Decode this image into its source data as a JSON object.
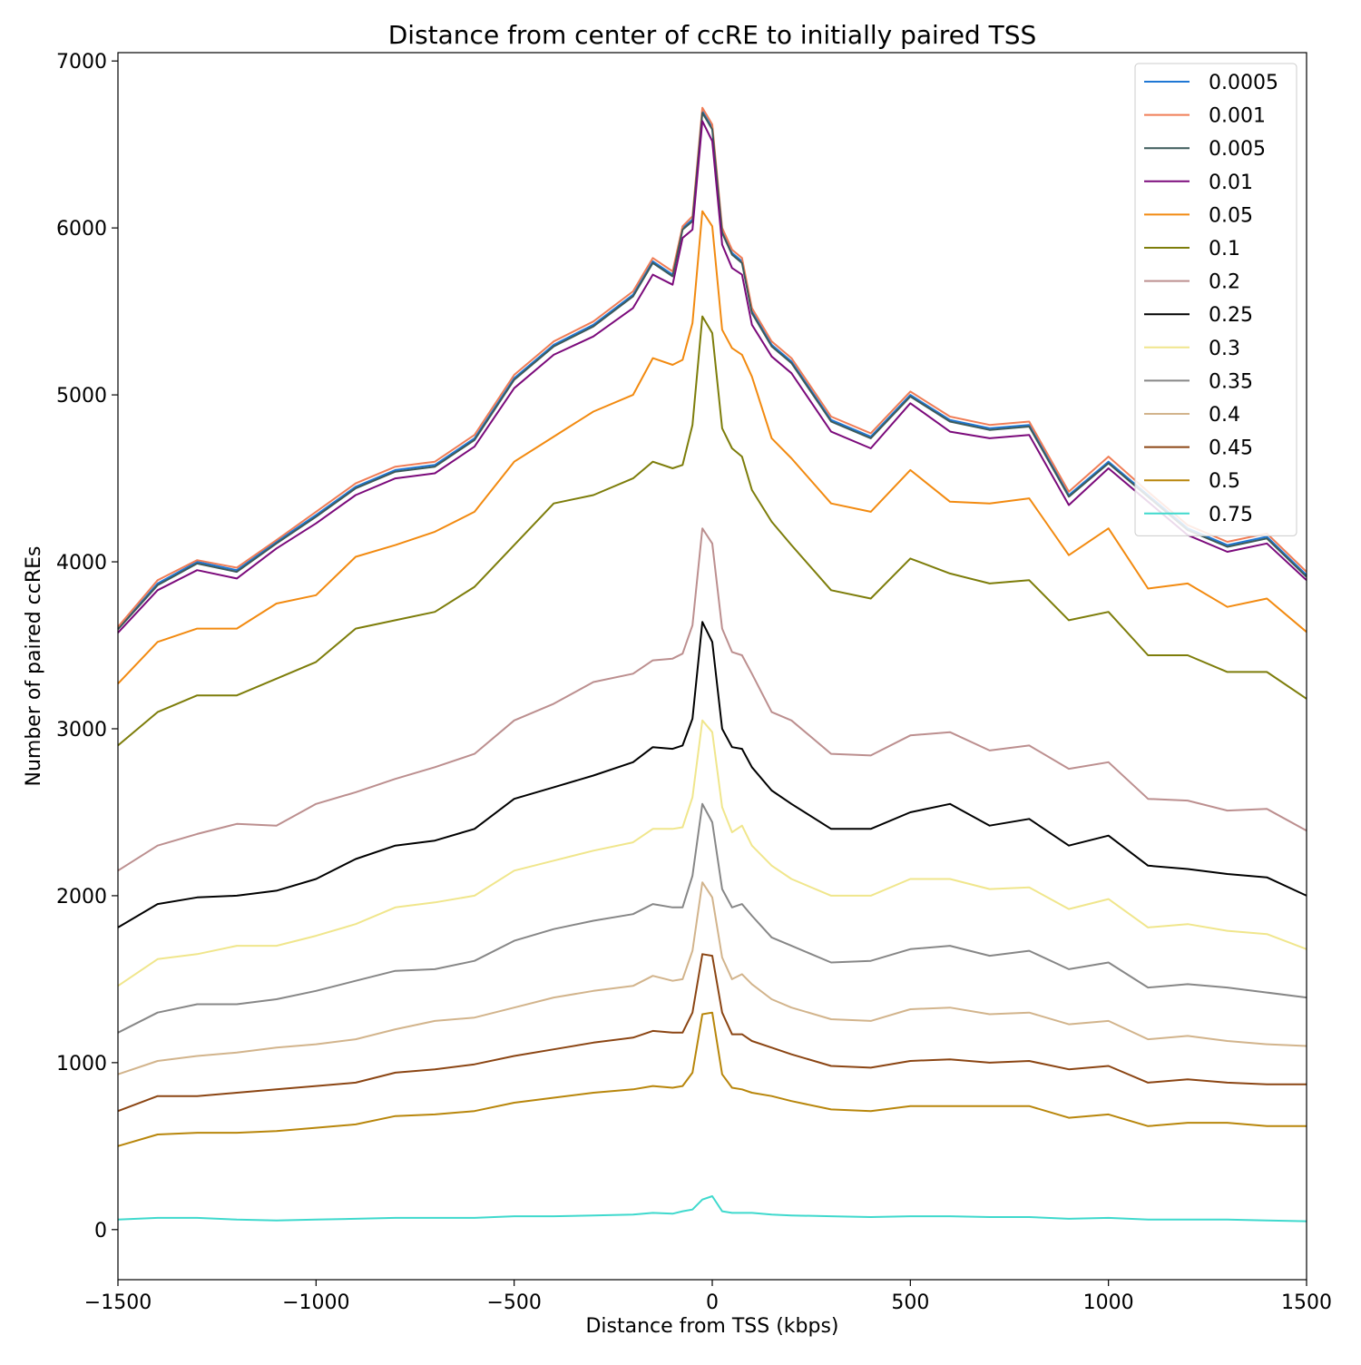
{
  "chart_data": {
    "type": "line",
    "title": "Distance from center of ccRE to initially paired TSS",
    "xlabel": "Distance from TSS (kbps)",
    "ylabel": "Number of paired ccREs",
    "xlim": [
      -1500,
      1500
    ],
    "ylim": [
      -300,
      7050
    ],
    "xticks": [
      -1500,
      -1000,
      -500,
      0,
      500,
      1000,
      1500
    ],
    "xtick_labels": [
      "−1500",
      "−1000",
      "−500",
      "0",
      "500",
      "1000",
      "1500"
    ],
    "yticks": [
      0,
      1000,
      2000,
      3000,
      4000,
      5000,
      6000,
      7000
    ],
    "ytick_labels": [
      "0",
      "1000",
      "2000",
      "3000",
      "4000",
      "5000",
      "6000",
      "7000"
    ],
    "grid": false,
    "legend_position": "top-right",
    "x": [
      -1500,
      -1400,
      -1300,
      -1200,
      -1100,
      -1000,
      -900,
      -800,
      -700,
      -600,
      -500,
      -400,
      -300,
      -200,
      -150,
      -100,
      -75,
      -50,
      -25,
      0,
      25,
      50,
      75,
      100,
      150,
      200,
      300,
      400,
      500,
      600,
      700,
      800,
      900,
      1000,
      1100,
      1200,
      1300,
      1400,
      1500
    ],
    "series": [
      {
        "name": "0.0005",
        "color": "#1f77d4",
        "values": [
          3600,
          3870,
          4000,
          3950,
          4120,
          4280,
          4450,
          4550,
          4580,
          4740,
          5100,
          5300,
          5420,
          5600,
          5800,
          5720,
          6000,
          6050,
          6700,
          6600,
          5980,
          5850,
          5800,
          5500,
          5300,
          5200,
          4850,
          4750,
          5000,
          4850,
          4800,
          4820,
          4400,
          4600,
          4400,
          4200,
          4100,
          4150,
          3920
        ]
      },
      {
        "name": "0.001",
        "color": "#f07d56",
        "values": [
          3610,
          3890,
          4010,
          3965,
          4130,
          4300,
          4470,
          4570,
          4600,
          4760,
          5120,
          5320,
          5440,
          5620,
          5820,
          5740,
          6010,
          6070,
          6720,
          6620,
          6000,
          5870,
          5820,
          5520,
          5320,
          5220,
          4870,
          4770,
          5020,
          4870,
          4820,
          4840,
          4420,
          4630,
          4420,
          4220,
          4120,
          4170,
          3940
        ]
      },
      {
        "name": "0.005",
        "color": "#3c5a5a",
        "values": [
          3595,
          3860,
          3990,
          3940,
          4110,
          4270,
          4440,
          4540,
          4570,
          4730,
          5090,
          5290,
          5410,
          5590,
          5790,
          5710,
          5990,
          6040,
          6690,
          6590,
          5970,
          5840,
          5790,
          5490,
          5290,
          5190,
          4840,
          4740,
          4990,
          4840,
          4790,
          4810,
          4390,
          4590,
          4390,
          4190,
          4090,
          4140,
          3910
        ]
      },
      {
        "name": "0.01",
        "color": "#7b0a7b",
        "values": [
          3575,
          3830,
          3950,
          3900,
          4080,
          4230,
          4400,
          4500,
          4530,
          4690,
          5040,
          5240,
          5350,
          5520,
          5720,
          5660,
          5940,
          5990,
          6640,
          6520,
          5900,
          5760,
          5720,
          5420,
          5230,
          5130,
          4780,
          4680,
          4950,
          4780,
          4740,
          4760,
          4340,
          4560,
          4360,
          4160,
          4060,
          4110,
          3890
        ]
      },
      {
        "name": "0.05",
        "color": "#f28a10",
        "values": [
          3270,
          3520,
          3600,
          3600,
          3750,
          3800,
          4030,
          4100,
          4180,
          4300,
          4600,
          4750,
          4900,
          5000,
          5220,
          5180,
          5210,
          5430,
          6100,
          6010,
          5390,
          5280,
          5240,
          5110,
          4740,
          4620,
          4350,
          4300,
          4550,
          4360,
          4350,
          4380,
          4040,
          4200,
          3840,
          3870,
          3730,
          3780,
          3580
        ]
      },
      {
        "name": "0.1",
        "color": "#7d7d0a",
        "values": [
          2900,
          3100,
          3200,
          3200,
          3300,
          3400,
          3600,
          3650,
          3700,
          3850,
          4100,
          4350,
          4400,
          4500,
          4600,
          4560,
          4580,
          4820,
          5470,
          5370,
          4800,
          4680,
          4630,
          4430,
          4240,
          4100,
          3830,
          3780,
          4020,
          3930,
          3870,
          3890,
          3650,
          3700,
          3440,
          3440,
          3340,
          3340,
          3180
        ]
      },
      {
        "name": "0.2",
        "color": "#bc8f8f",
        "values": [
          2150,
          2300,
          2370,
          2430,
          2420,
          2550,
          2620,
          2700,
          2770,
          2850,
          3050,
          3150,
          3280,
          3330,
          3410,
          3420,
          3450,
          3620,
          4200,
          4110,
          3600,
          3460,
          3440,
          3330,
          3100,
          3050,
          2850,
          2840,
          2960,
          2980,
          2870,
          2900,
          2760,
          2800,
          2580,
          2570,
          2510,
          2520,
          2390
        ]
      },
      {
        "name": "0.25",
        "color": "#000000",
        "values": [
          1810,
          1950,
          1990,
          2000,
          2030,
          2100,
          2220,
          2300,
          2330,
          2400,
          2580,
          2650,
          2720,
          2800,
          2890,
          2880,
          2900,
          3060,
          3640,
          3520,
          3000,
          2890,
          2880,
          2770,
          2630,
          2550,
          2400,
          2400,
          2500,
          2550,
          2420,
          2460,
          2300,
          2360,
          2180,
          2160,
          2130,
          2110,
          2000
        ]
      },
      {
        "name": "0.3",
        "color": "#f0e68c",
        "values": [
          1460,
          1620,
          1650,
          1700,
          1700,
          1760,
          1830,
          1930,
          1960,
          2000,
          2150,
          2210,
          2270,
          2320,
          2400,
          2400,
          2410,
          2590,
          3050,
          2980,
          2530,
          2380,
          2420,
          2300,
          2180,
          2100,
          2000,
          2000,
          2100,
          2100,
          2040,
          2050,
          1920,
          1980,
          1810,
          1830,
          1790,
          1770,
          1680
        ]
      },
      {
        "name": "0.35",
        "color": "#878787",
        "values": [
          1180,
          1300,
          1350,
          1350,
          1380,
          1430,
          1490,
          1550,
          1560,
          1610,
          1730,
          1800,
          1850,
          1890,
          1950,
          1930,
          1930,
          2120,
          2550,
          2440,
          2040,
          1930,
          1950,
          1880,
          1750,
          1700,
          1600,
          1610,
          1680,
          1700,
          1640,
          1670,
          1560,
          1600,
          1450,
          1470,
          1450,
          1420,
          1390
        ]
      },
      {
        "name": "0.4",
        "color": "#d2b48c",
        "values": [
          930,
          1010,
          1040,
          1060,
          1090,
          1110,
          1140,
          1200,
          1250,
          1270,
          1330,
          1390,
          1430,
          1460,
          1520,
          1490,
          1500,
          1670,
          2080,
          1990,
          1630,
          1500,
          1530,
          1470,
          1380,
          1330,
          1260,
          1250,
          1320,
          1330,
          1290,
          1300,
          1230,
          1250,
          1140,
          1160,
          1130,
          1110,
          1100
        ]
      },
      {
        "name": "0.45",
        "color": "#8b4513",
        "values": [
          710,
          800,
          800,
          820,
          840,
          860,
          880,
          940,
          960,
          990,
          1040,
          1080,
          1120,
          1150,
          1190,
          1180,
          1180,
          1300,
          1650,
          1640,
          1300,
          1170,
          1170,
          1130,
          1090,
          1050,
          980,
          970,
          1010,
          1020,
          1000,
          1010,
          960,
          980,
          880,
          900,
          880,
          870,
          870
        ]
      },
      {
        "name": "0.5",
        "color": "#b8860b",
        "values": [
          500,
          570,
          580,
          580,
          590,
          610,
          630,
          680,
          690,
          710,
          760,
          790,
          820,
          840,
          860,
          850,
          860,
          940,
          1290,
          1300,
          930,
          850,
          840,
          820,
          800,
          770,
          720,
          710,
          740,
          740,
          740,
          740,
          670,
          690,
          620,
          640,
          640,
          620,
          620
        ]
      },
      {
        "name": "0.75",
        "color": "#3fd9cd",
        "values": [
          60,
          70,
          70,
          60,
          55,
          60,
          65,
          70,
          70,
          70,
          80,
          80,
          85,
          90,
          100,
          95,
          110,
          120,
          180,
          200,
          110,
          100,
          100,
          100,
          90,
          85,
          80,
          75,
          80,
          80,
          75,
          75,
          65,
          70,
          60,
          60,
          60,
          55,
          50
        ]
      }
    ]
  }
}
